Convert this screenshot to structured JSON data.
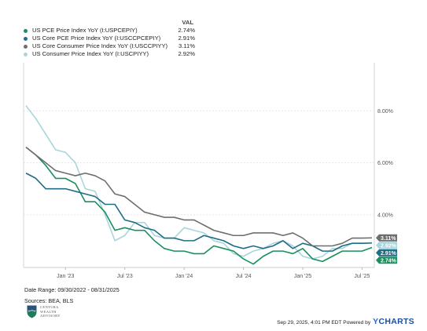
{
  "legend": {
    "header": "VAL",
    "items": [
      {
        "name": "US PCE Price Index YoY (I:USPCEPIY)",
        "value": "2.74%",
        "color": "#1a8f5f"
      },
      {
        "name": "US Core PCE Price Index YoY (I:USCCPCEPIY)",
        "value": "2.91%",
        "color": "#1f6e86"
      },
      {
        "name": "US Core Consumer Price Index YoY (I:USCCPIYY)",
        "value": "3.11%",
        "color": "#6e6e6e"
      },
      {
        "name": "US Consumer Price Index YoY (I:USCPIYY)",
        "value": "2.92%",
        "color": "#a9d5dc"
      }
    ]
  },
  "chart_data": {
    "type": "line",
    "x_start": "2022-09",
    "x_end": "2025-08",
    "x_tick_labels": [
      {
        "label": "Jan '23",
        "month": "2023-01"
      },
      {
        "label": "Jul '23",
        "month": "2023-07"
      },
      {
        "label": "Jan '24",
        "month": "2024-01"
      },
      {
        "label": "Jul '24",
        "month": "2024-07"
      },
      {
        "label": "Jan '25",
        "month": "2025-01"
      },
      {
        "label": "Jul '25",
        "month": "2025-07"
      }
    ],
    "y_ticks": [
      {
        "value": 4,
        "label": "4.00%"
      },
      {
        "value": 6,
        "label": "6.00%"
      },
      {
        "value": 8,
        "label": "8.00%"
      }
    ],
    "ylim": [
      1.97,
      9.85
    ],
    "grid": "horizontal",
    "series": [
      {
        "name": "US PCE Price Index YoY (I:USPCEPIY)",
        "color": "#1a8f5f",
        "end_label": "2.74%",
        "values": [
          6.6,
          6.3,
          5.9,
          5.4,
          5.4,
          5.2,
          4.5,
          4.5,
          4.1,
          3.4,
          3.5,
          3.4,
          3.4,
          3.0,
          2.7,
          2.6,
          2.6,
          2.5,
          2.5,
          2.8,
          2.7,
          2.6,
          2.3,
          2.1,
          2.4,
          2.6,
          2.6,
          2.5,
          2.7,
          2.3,
          2.2,
          2.4,
          2.6,
          2.6,
          2.6,
          2.74
        ]
      },
      {
        "name": "US Core PCE Price Index YoY (I:USCCPCEPIY)",
        "color": "#1f6e86",
        "end_label": "2.91%",
        "values": [
          5.6,
          5.4,
          5.0,
          5.0,
          5.0,
          4.9,
          4.8,
          4.7,
          4.4,
          4.4,
          3.8,
          3.7,
          3.5,
          3.4,
          3.1,
          3.1,
          3.0,
          3.0,
          3.2,
          3.1,
          3.0,
          2.8,
          2.7,
          2.8,
          2.7,
          2.8,
          3.0,
          2.7,
          2.9,
          2.8,
          2.6,
          2.6,
          2.8,
          2.9,
          2.9,
          2.91
        ]
      },
      {
        "name": "US Core Consumer Price Index YoY (I:USCCPIYY)",
        "color": "#6e6e6e",
        "end_label": "3.11%",
        "values": [
          6.6,
          6.3,
          6.0,
          5.7,
          5.6,
          5.5,
          5.6,
          5.5,
          5.3,
          4.8,
          4.7,
          4.4,
          4.1,
          4.0,
          3.9,
          3.9,
          3.8,
          3.8,
          3.6,
          3.4,
          3.3,
          3.2,
          3.2,
          3.3,
          3.3,
          3.3,
          3.2,
          3.3,
          3.1,
          2.8,
          2.8,
          2.8,
          2.9,
          3.1,
          3.1,
          3.11
        ]
      },
      {
        "name": "US Consumer Price Index YoY (I:USCPIYY)",
        "color": "#a9d5dc",
        "end_label": "2.92%",
        "values": [
          8.2,
          7.7,
          7.1,
          6.5,
          6.4,
          6.0,
          5.0,
          4.9,
          4.0,
          3.0,
          3.2,
          3.7,
          3.7,
          3.2,
          3.1,
          3.1,
          3.5,
          3.4,
          3.3,
          3.0,
          2.9,
          2.5,
          2.4,
          2.6,
          2.7,
          2.9,
          3.0,
          2.8,
          2.4,
          2.3,
          2.4,
          2.7,
          2.7,
          2.9,
          2.9,
          2.92
        ]
      }
    ]
  },
  "footer": {
    "date_range": "Date Range: 09/30/2022 - 08/31/2025",
    "sources": "Sources: BEA, BLS",
    "logo_lines": [
      "CENTURA",
      "WEALTH",
      "ADVISORY"
    ],
    "timestamp": "Sep 29, 2025, 4:01 PM EDT Powered by",
    "brand_y": "Y",
    "brand_rest": "CHARTS"
  }
}
